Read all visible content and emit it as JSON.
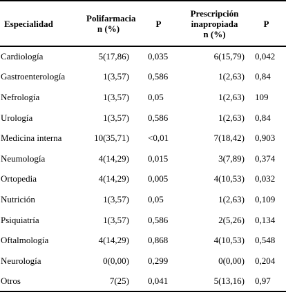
{
  "table": {
    "headers": {
      "especialidad": "Especialidad",
      "polifarmacia_line1": "Polifarmacia",
      "polifarmacia_line2": "n (%)",
      "p1": "P",
      "prescripcion_line1": "Prescripción",
      "prescripcion_line2": "inapropiada",
      "prescripcion_line3": "n (%)",
      "p2": "P"
    },
    "rows": [
      {
        "especialidad": "Cardiología",
        "polifarmacia": "5(17,86)",
        "p1": "0,035",
        "prescripcion": "6(15,79)",
        "p2": "0,042"
      },
      {
        "especialidad": "Gastroenterología",
        "polifarmacia": "1(3,57)",
        "p1": "0,586",
        "prescripcion": "1(2,63)",
        "p2": "0,84"
      },
      {
        "especialidad": "Nefrología",
        "polifarmacia": "1(3,57)",
        "p1": "0,05",
        "prescripcion": "1(2,63)",
        "p2": "109"
      },
      {
        "especialidad": "Urología",
        "polifarmacia": "1(3,57)",
        "p1": "0,586",
        "prescripcion": "1(2,63)",
        "p2": "0,84"
      },
      {
        "especialidad": "Medicina interna",
        "polifarmacia": "10(35,71)",
        "p1": "<0,01",
        "prescripcion": "7(18,42)",
        "p2": "0,903"
      },
      {
        "especialidad": "Neumología",
        "polifarmacia": "4(14,29)",
        "p1": "0,015",
        "prescripcion": "3(7,89)",
        "p2": "0,374"
      },
      {
        "especialidad": "Ortopedia",
        "polifarmacia": "4(14,29)",
        "p1": "0,005",
        "prescripcion": "4(10,53)",
        "p2": "0,032"
      },
      {
        "especialidad": "Nutrición",
        "polifarmacia": "1(3,57)",
        "p1": "0,05",
        "prescripcion": "1(2,63)",
        "p2": "0,109"
      },
      {
        "especialidad": "Psiquiatría",
        "polifarmacia": "1(3,57)",
        "p1": "0,586",
        "prescripcion": "2(5,26)",
        "p2": "0,134"
      },
      {
        "especialidad": "Oftalmología",
        "polifarmacia": "4(14,29)",
        "p1": "0,868",
        "prescripcion": "4(10,53)",
        "p2": "0,548"
      },
      {
        "especialidad": "Neurología",
        "polifarmacia": "0(0,00)",
        "p1": "0,299",
        "prescripcion": "0(0,00)",
        "p2": "0,204"
      },
      {
        "especialidad": "Otros",
        "polifarmacia": "7(25)",
        "p1": "0,041",
        "prescripcion": "5(13,16)",
        "p2": "0,97"
      }
    ]
  }
}
